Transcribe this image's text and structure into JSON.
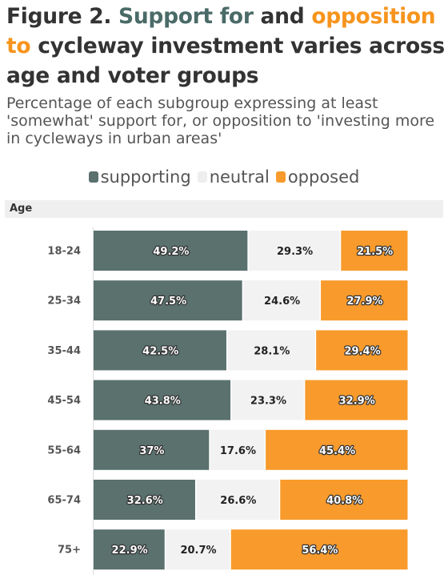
{
  "title": {
    "prefix": "Figure 2.",
    "support": "Support for",
    "and": "and",
    "oppose": "opposition to",
    "rest": "cycleway investment varies across age and voter groups"
  },
  "subtitle": "Percentage of each subgroup expressing at least 'somewhat' support for, or opposition to 'investing more in cycleways in urban areas'",
  "colors": {
    "supporting": "#5a716e",
    "neutral": "#f2f2f2",
    "opposed": "#f89b2c",
    "title_support": "#4a6b68",
    "title_oppose": "#f7941d"
  },
  "chart_data": {
    "type": "bar",
    "orientation": "horizontal",
    "stacked": true,
    "group_label": "Age",
    "categories": [
      "18-24",
      "25-34",
      "35-44",
      "45-54",
      "55-64",
      "65-74",
      "75+"
    ],
    "series": [
      {
        "name": "supporting",
        "values": [
          49.2,
          47.5,
          42.5,
          43.8,
          37,
          32.6,
          22.9
        ],
        "labels": [
          "49.2%",
          "47.5%",
          "42.5%",
          "43.8%",
          "37%",
          "32.6%",
          "22.9%"
        ]
      },
      {
        "name": "neutral",
        "values": [
          29.3,
          24.6,
          28.1,
          23.3,
          17.6,
          26.6,
          20.7
        ],
        "labels": [
          "29.3%",
          "24.6%",
          "28.1%",
          "23.3%",
          "17.6%",
          "26.6%",
          "20.7%"
        ]
      },
      {
        "name": "opposed",
        "values": [
          21.5,
          27.9,
          29.4,
          32.9,
          45.4,
          40.8,
          56.4
        ],
        "labels": [
          "21.5%",
          "27.9%",
          "29.4%",
          "32.9%",
          "45.4%",
          "40.8%",
          "56.4%"
        ]
      }
    ],
    "xlim": [
      0,
      100
    ],
    "legend": "top-center"
  }
}
